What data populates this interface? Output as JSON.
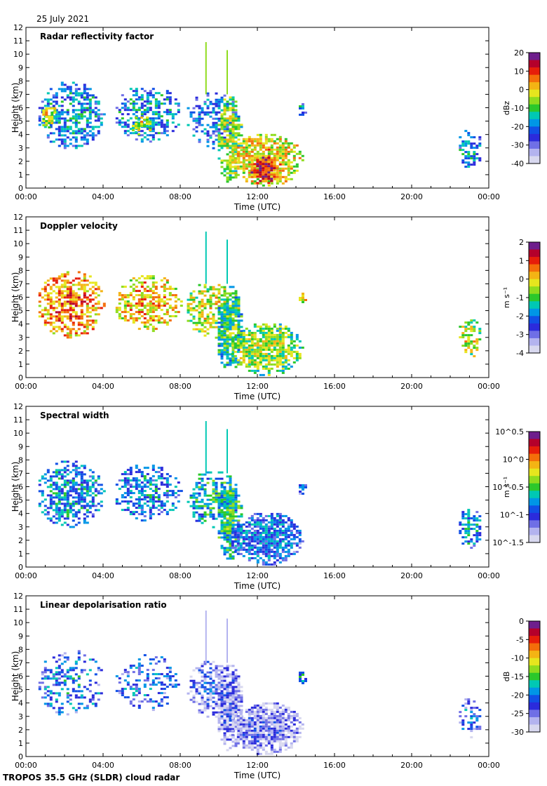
{
  "date": "25 July 2021",
  "footer": "TROPOS 35.5 GHz (SLDR) cloud radar",
  "colors": {
    "colormap": [
      "#d8d8ef",
      "#b3b3ef",
      "#6f6fe6",
      "#2b2bdc",
      "#1150e6",
      "#0096e6",
      "#00c8b4",
      "#2bc82b",
      "#8fdc1e",
      "#e6e61e",
      "#f4b414",
      "#f46e0a",
      "#e61e0a",
      "#b4002b",
      "#6e1e8c"
    ],
    "axis": "#000000",
    "background": "#ffffff"
  },
  "chart_data": [
    {
      "type": "heatmap",
      "title": "Radar reflectivity factor",
      "xlabel": "Time (UTC)",
      "ylabel": "Height (km)",
      "xticks": [
        "00:00",
        "04:00",
        "08:00",
        "12:00",
        "16:00",
        "20:00",
        "00:00"
      ],
      "yticks": [
        "0",
        "1",
        "2",
        "3",
        "4",
        "5",
        "6",
        "7",
        "8",
        "9",
        "10",
        "11",
        "12"
      ],
      "ylim": [
        0,
        12
      ],
      "xlim_hours": [
        0,
        24
      ],
      "colorbar": {
        "label": "dBz",
        "ticks": [
          "20",
          "10",
          "0",
          "-10",
          "-20",
          "-30",
          "-40"
        ]
      },
      "cloud_regions": [
        {
          "t0": 0.5,
          "t1": 4.0,
          "h0": 3.0,
          "h1": 8.1,
          "level": 0.3,
          "density": 0.55
        },
        {
          "t0": 0.7,
          "t1": 1.5,
          "h0": 4.5,
          "h1": 6.5,
          "level": 0.55,
          "density": 0.7
        },
        {
          "t0": 4.5,
          "t1": 8.0,
          "h0": 3.5,
          "h1": 7.8,
          "level": 0.3,
          "density": 0.5
        },
        {
          "t0": 5.2,
          "t1": 6.5,
          "h0": 4.0,
          "h1": 5.5,
          "level": 0.55,
          "density": 0.6
        },
        {
          "t0": 8.2,
          "t1": 11.0,
          "h0": 3.0,
          "h1": 7.3,
          "level": 0.25,
          "density": 0.45
        },
        {
          "t0": 9.8,
          "t1": 11.2,
          "h0": 0.5,
          "h1": 7.0,
          "level": 0.5,
          "density": 0.75
        },
        {
          "t0": 10.5,
          "t1": 14.3,
          "h0": 0.2,
          "h1": 4.2,
          "level": 0.6,
          "density": 0.8
        },
        {
          "t0": 11.5,
          "t1": 13.0,
          "h0": 0.3,
          "h1": 2.5,
          "level": 0.8,
          "density": 0.8
        },
        {
          "t0": 14.0,
          "t1": 14.5,
          "h0": 5.5,
          "h1": 6.5,
          "level": 0.3,
          "density": 0.6
        },
        {
          "t0": 22.3,
          "t1": 23.6,
          "h0": 1.5,
          "h1": 4.5,
          "level": 0.3,
          "density": 0.55
        }
      ]
    },
    {
      "type": "heatmap",
      "title": "Doppler velocity",
      "xlabel": "Time (UTC)",
      "ylabel": "Height (km)",
      "xticks": [
        "00:00",
        "04:00",
        "08:00",
        "12:00",
        "16:00",
        "20:00",
        "00:00"
      ],
      "yticks": [
        "0",
        "1",
        "2",
        "3",
        "4",
        "5",
        "6",
        "7",
        "8",
        "9",
        "10",
        "11",
        "12"
      ],
      "ylim": [
        0,
        12
      ],
      "xlim_hours": [
        0,
        24
      ],
      "colorbar": {
        "label": "m s⁻¹",
        "ticks": [
          "2",
          "1",
          "0",
          "-1",
          "-2",
          "-3",
          "-4"
        ]
      },
      "cloud_regions": [
        {
          "t0": 0.5,
          "t1": 4.0,
          "h0": 3.0,
          "h1": 8.1,
          "level": 0.68,
          "density": 0.6
        },
        {
          "t0": 4.5,
          "t1": 8.0,
          "h0": 3.5,
          "h1": 7.8,
          "level": 0.62,
          "density": 0.55
        },
        {
          "t0": 8.2,
          "t1": 11.0,
          "h0": 3.0,
          "h1": 7.3,
          "level": 0.55,
          "density": 0.5
        },
        {
          "t0": 9.8,
          "t1": 11.2,
          "h0": 0.5,
          "h1": 7.0,
          "level": 0.42,
          "density": 0.75
        },
        {
          "t0": 10.5,
          "t1": 14.3,
          "h0": 0.2,
          "h1": 4.2,
          "level": 0.5,
          "density": 0.8
        },
        {
          "t0": 14.0,
          "t1": 14.5,
          "h0": 5.5,
          "h1": 6.5,
          "level": 0.6,
          "density": 0.6
        },
        {
          "t0": 22.3,
          "t1": 23.6,
          "h0": 1.5,
          "h1": 4.5,
          "level": 0.55,
          "density": 0.55
        }
      ]
    },
    {
      "type": "heatmap",
      "title": "Spectral width",
      "xlabel": "Time (UTC)",
      "ylabel": "Height (km)",
      "xticks": [
        "00:00",
        "04:00",
        "08:00",
        "12:00",
        "16:00",
        "20:00",
        "00:00"
      ],
      "yticks": [
        "0",
        "1",
        "2",
        "3",
        "4",
        "5",
        "6",
        "7",
        "8",
        "9",
        "10",
        "11",
        "12"
      ],
      "ylim": [
        0,
        12
      ],
      "xlim_hours": [
        0,
        24
      ],
      "colorbar": {
        "label": "m s⁻¹",
        "ticks": [
          "10^0.5",
          "10^0",
          "10^-0.5",
          "10^-1",
          "10^-1.5"
        ]
      },
      "cloud_regions": [
        {
          "t0": 0.5,
          "t1": 4.0,
          "h0": 3.0,
          "h1": 8.1,
          "level": 0.3,
          "density": 0.6
        },
        {
          "t0": 4.5,
          "t1": 8.0,
          "h0": 3.5,
          "h1": 7.8,
          "level": 0.28,
          "density": 0.55
        },
        {
          "t0": 8.2,
          "t1": 11.0,
          "h0": 3.0,
          "h1": 7.3,
          "level": 0.35,
          "density": 0.5
        },
        {
          "t0": 9.8,
          "t1": 11.2,
          "h0": 0.5,
          "h1": 7.0,
          "level": 0.4,
          "density": 0.75
        },
        {
          "t0": 10.5,
          "t1": 14.3,
          "h0": 0.2,
          "h1": 4.2,
          "level": 0.25,
          "density": 0.8
        },
        {
          "t0": 14.0,
          "t1": 14.5,
          "h0": 5.5,
          "h1": 6.5,
          "level": 0.25,
          "density": 0.6
        },
        {
          "t0": 22.3,
          "t1": 23.6,
          "h0": 1.5,
          "h1": 4.5,
          "level": 0.3,
          "density": 0.55
        }
      ]
    },
    {
      "type": "heatmap",
      "title": "Linear depolarisation ratio",
      "xlabel": "Time (UTC)",
      "ylabel": "Height (km)",
      "xticks": [
        "00:00",
        "04:00",
        "08:00",
        "12:00",
        "16:00",
        "20:00",
        "00:00"
      ],
      "yticks": [
        "0",
        "1",
        "2",
        "3",
        "4",
        "5",
        "6",
        "7",
        "8",
        "9",
        "10",
        "11",
        "12"
      ],
      "ylim": [
        0,
        12
      ],
      "xlim_hours": [
        0,
        24
      ],
      "colorbar": {
        "label": "dB",
        "ticks": [
          "0",
          "-5",
          "-10",
          "-15",
          "-20",
          "-25",
          "-30"
        ]
      },
      "cloud_regions": [
        {
          "t0": 0.5,
          "t1": 4.0,
          "h0": 3.0,
          "h1": 8.1,
          "level": 0.25,
          "density": 0.35
        },
        {
          "t0": 4.5,
          "t1": 8.0,
          "h0": 3.5,
          "h1": 7.8,
          "level": 0.22,
          "density": 0.35
        },
        {
          "t0": 8.2,
          "t1": 11.0,
          "h0": 3.0,
          "h1": 7.3,
          "level": 0.12,
          "density": 0.55
        },
        {
          "t0": 9.8,
          "t1": 11.2,
          "h0": 0.5,
          "h1": 7.0,
          "level": 0.08,
          "density": 0.8
        },
        {
          "t0": 10.5,
          "t1": 14.3,
          "h0": 0.2,
          "h1": 4.2,
          "level": 0.08,
          "density": 0.85
        },
        {
          "t0": 14.0,
          "t1": 14.5,
          "h0": 5.5,
          "h1": 6.5,
          "level": 0.3,
          "density": 0.6
        },
        {
          "t0": 22.3,
          "t1": 23.6,
          "h0": 1.5,
          "h1": 4.5,
          "level": 0.2,
          "density": 0.45
        }
      ]
    }
  ]
}
